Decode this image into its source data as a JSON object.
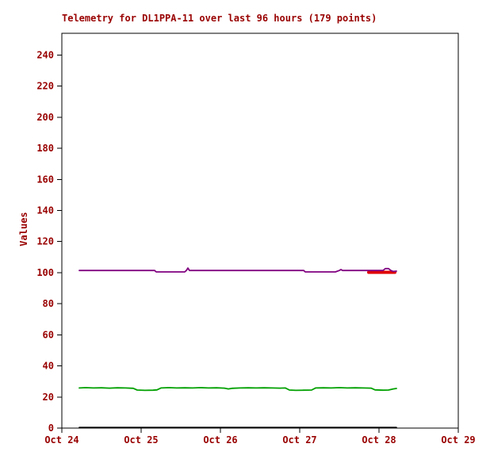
{
  "chart_data": {
    "type": "line",
    "title": "Telemetry for DL1PPA-11 over last 96 hours (179 points)",
    "ylabel": "Values",
    "xlabel": "",
    "ylim": [
      0,
      254
    ],
    "xlim": [
      0,
      5
    ],
    "grid": false,
    "legend": "none",
    "text_color": "#990000",
    "axis_color": "#000000",
    "background": "#ffffff",
    "y_ticks": [
      0,
      20,
      40,
      60,
      80,
      100,
      120,
      140,
      160,
      180,
      200,
      220,
      240
    ],
    "x_ticks": [
      {
        "pos": 0,
        "label": "Oct 24"
      },
      {
        "pos": 1,
        "label": "Oct 25"
      },
      {
        "pos": 2,
        "label": "Oct 26"
      },
      {
        "pos": 3,
        "label": "Oct 27"
      },
      {
        "pos": 4,
        "label": "Oct 28"
      },
      {
        "pos": 5,
        "label": "Oct 29"
      }
    ],
    "series": [
      {
        "name": "zero-line",
        "color": "#000000",
        "width": 1.6,
        "points": [
          [
            0.22,
            0.4
          ],
          [
            4.22,
            0.4
          ]
        ]
      },
      {
        "name": "red-segment",
        "color": "#e00000",
        "width": 4,
        "points": [
          [
            3.87,
            100.2
          ],
          [
            4.2,
            100.2
          ]
        ]
      },
      {
        "name": "green-channel",
        "color": "#00a000",
        "width": 1.8,
        "points": [
          [
            0.22,
            25.8
          ],
          [
            0.3,
            26.0
          ],
          [
            0.4,
            25.8
          ],
          [
            0.5,
            25.9
          ],
          [
            0.6,
            25.7
          ],
          [
            0.7,
            25.9
          ],
          [
            0.8,
            25.8
          ],
          [
            0.9,
            25.6
          ],
          [
            0.95,
            24.5
          ],
          [
            1.05,
            24.3
          ],
          [
            1.15,
            24.4
          ],
          [
            1.2,
            24.6
          ],
          [
            1.25,
            25.8
          ],
          [
            1.35,
            26.0
          ],
          [
            1.45,
            25.8
          ],
          [
            1.55,
            25.9
          ],
          [
            1.65,
            25.8
          ],
          [
            1.75,
            26.0
          ],
          [
            1.85,
            25.8
          ],
          [
            1.95,
            25.9
          ],
          [
            2.05,
            25.7
          ],
          [
            2.1,
            25.2
          ],
          [
            2.15,
            25.6
          ],
          [
            2.25,
            25.8
          ],
          [
            2.35,
            25.9
          ],
          [
            2.45,
            25.8
          ],
          [
            2.55,
            25.9
          ],
          [
            2.65,
            25.8
          ],
          [
            2.75,
            25.7
          ],
          [
            2.82,
            25.8
          ],
          [
            2.87,
            24.5
          ],
          [
            2.95,
            24.3
          ],
          [
            3.05,
            24.4
          ],
          [
            3.15,
            24.5
          ],
          [
            3.2,
            25.8
          ],
          [
            3.3,
            25.9
          ],
          [
            3.4,
            25.8
          ],
          [
            3.5,
            26.0
          ],
          [
            3.6,
            25.8
          ],
          [
            3.7,
            25.9
          ],
          [
            3.8,
            25.8
          ],
          [
            3.9,
            25.7
          ],
          [
            3.95,
            24.6
          ],
          [
            4.05,
            24.4
          ],
          [
            4.12,
            24.5
          ],
          [
            4.18,
            25.2
          ],
          [
            4.22,
            25.5
          ]
        ]
      },
      {
        "name": "purple-channel",
        "color": "#800080",
        "width": 1.8,
        "points": [
          [
            0.22,
            101.4
          ],
          [
            0.35,
            101.4
          ],
          [
            0.5,
            101.4
          ],
          [
            0.65,
            101.4
          ],
          [
            0.8,
            101.4
          ],
          [
            0.95,
            101.4
          ],
          [
            1.1,
            101.4
          ],
          [
            1.17,
            101.4
          ],
          [
            1.19,
            100.5
          ],
          [
            1.3,
            100.5
          ],
          [
            1.42,
            100.5
          ],
          [
            1.55,
            100.5
          ],
          [
            1.57,
            101.4
          ],
          [
            1.59,
            103.0
          ],
          [
            1.61,
            101.4
          ],
          [
            1.75,
            101.4
          ],
          [
            1.9,
            101.4
          ],
          [
            2.1,
            101.4
          ],
          [
            2.3,
            101.4
          ],
          [
            2.5,
            101.4
          ],
          [
            2.7,
            101.4
          ],
          [
            2.9,
            101.4
          ],
          [
            3.05,
            101.4
          ],
          [
            3.07,
            100.5
          ],
          [
            3.2,
            100.5
          ],
          [
            3.35,
            100.5
          ],
          [
            3.45,
            100.5
          ],
          [
            3.5,
            101.4
          ],
          [
            3.52,
            102.0
          ],
          [
            3.54,
            101.4
          ],
          [
            3.7,
            101.4
          ],
          [
            3.85,
            101.4
          ],
          [
            3.95,
            101.4
          ],
          [
            4.05,
            101.4
          ],
          [
            4.08,
            102.6
          ],
          [
            4.12,
            102.6
          ],
          [
            4.15,
            101.4
          ],
          [
            4.18,
            100.8
          ],
          [
            4.22,
            101.0
          ]
        ]
      }
    ]
  }
}
